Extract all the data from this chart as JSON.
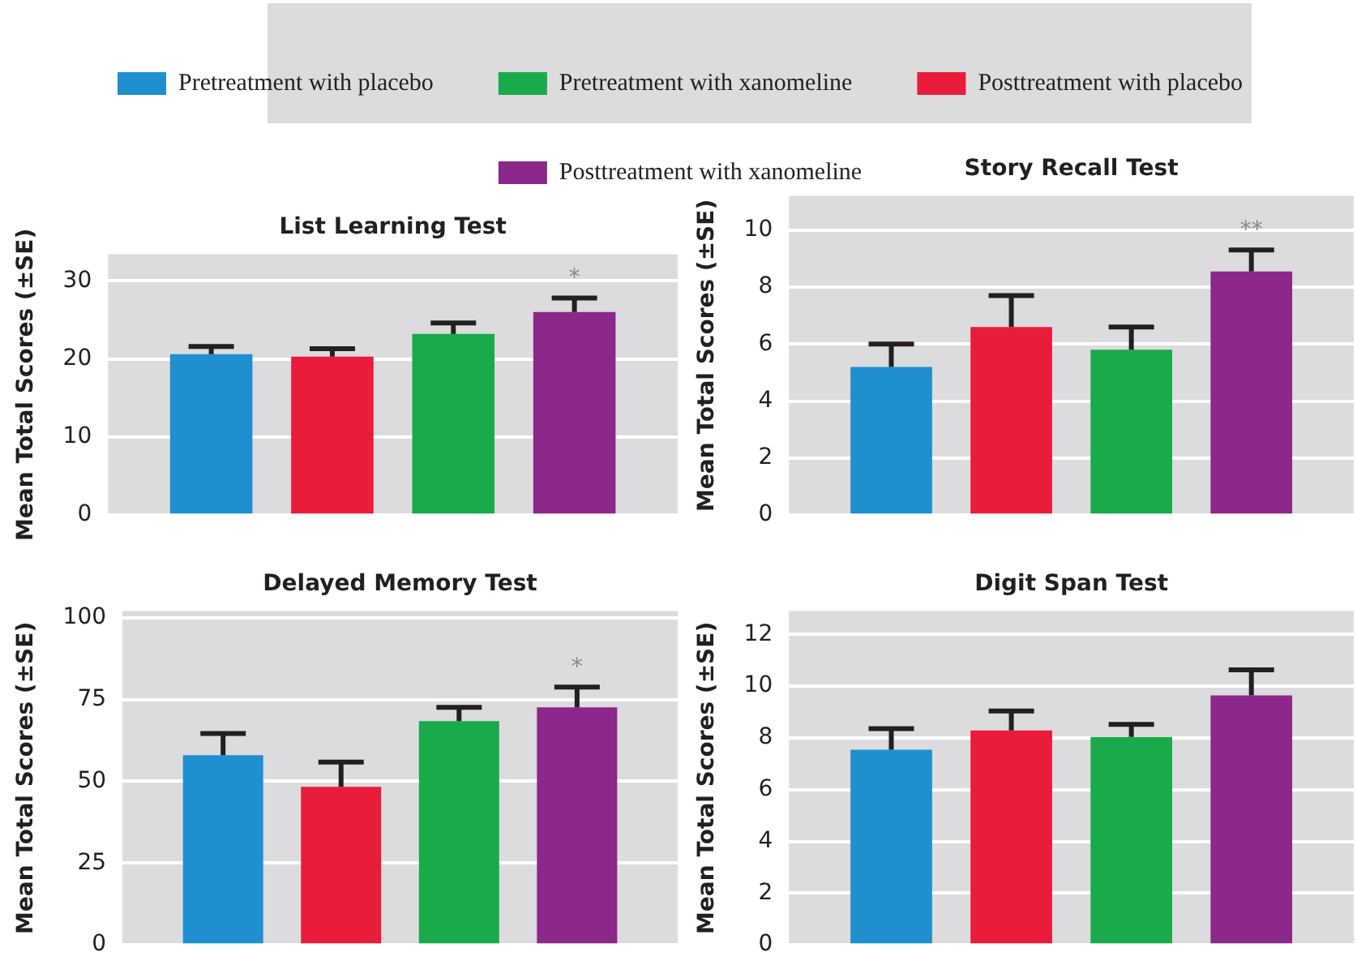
{
  "chart_data": [
    {
      "type": "bar",
      "title": "List Learning Test",
      "ylabel": "Mean Total Scores (±SE)",
      "categories": [
        null
      ],
      "legend": "top",
      "grid": "y",
      "ylim": [
        0,
        33.4
      ],
      "yticks": [
        0,
        10,
        20,
        30
      ],
      "annotations": [
        "*"
      ],
      "series": [
        {
          "name": "Pretreatment with placebo",
          "color": "#1f8fcf",
          "values": [
            20.6
          ],
          "errors": [
            [
              20.6,
              21.6
            ]
          ]
        },
        {
          "name": "Posttreatment with placebo",
          "color": "#e91c3a",
          "values": [
            20.3
          ],
          "errors": [
            [
              20.3,
              21.3
            ]
          ]
        },
        {
          "name": "Pretreatment with xanomeline",
          "color": "#1aaa4a",
          "values": [
            23.2
          ],
          "errors": [
            [
              23.2,
              24.6
            ]
          ]
        },
        {
          "name": "Posttreatment with xanomeline",
          "color": "#8b2889",
          "values": [
            26.0
          ],
          "errors": [
            [
              26.0,
              27.8
            ]
          ]
        }
      ]
    },
    {
      "type": "bar",
      "title": "Story Recall Test",
      "ylabel": "Mean Total Scores (±SE)",
      "categories": [
        null
      ],
      "grid": "y",
      "ylim": [
        0,
        11.2
      ],
      "yticks": [
        0,
        2,
        4,
        6,
        8,
        10
      ],
      "annotations": [
        "**"
      ],
      "series": [
        {
          "color": "#1f8fcf",
          "values": [
            5.2
          ],
          "errors": [
            [
              5.2,
              6.0
            ]
          ]
        },
        {
          "color": "#e91c3a",
          "values": [
            6.6
          ],
          "errors": [
            [
              6.6,
              7.7
            ]
          ]
        },
        {
          "color": "#1aaa4a",
          "values": [
            5.8
          ],
          "errors": [
            [
              5.8,
              6.6
            ]
          ]
        },
        {
          "color": "#8b2889",
          "values": [
            8.55
          ],
          "errors": [
            [
              8.55,
              9.3
            ]
          ]
        }
      ]
    },
    {
      "type": "bar",
      "title": "Delayed Memory Test",
      "ylabel": "Mean Total Scores (±SE)",
      "categories": [
        null
      ],
      "grid": "y",
      "ylim": [
        0,
        102
      ],
      "yticks": [
        0,
        25,
        50,
        75,
        100
      ],
      "annotations": [
        "*"
      ],
      "series": [
        {
          "color": "#1f8fcf",
          "values": [
            58
          ],
          "errors": [
            [
              58,
              64.6
            ]
          ]
        },
        {
          "color": "#e91c3a",
          "values": [
            48.3
          ],
          "errors": [
            [
              48.3,
              55.9
            ]
          ]
        },
        {
          "color": "#1aaa4a",
          "values": [
            68.4
          ],
          "errors": [
            [
              68.4,
              72.6
            ]
          ]
        },
        {
          "color": "#8b2889",
          "values": [
            72.6
          ],
          "errors": [
            [
              72.6,
              78.8
            ]
          ]
        }
      ]
    },
    {
      "type": "bar",
      "title": "Digit Span Test",
      "ylabel": "Mean Total Scores (±SE)",
      "categories": [
        null
      ],
      "grid": "y",
      "ylim": [
        0,
        12.9
      ],
      "yticks": [
        0,
        2,
        4,
        6,
        8,
        10,
        12
      ],
      "series": [
        {
          "color": "#1f8fcf",
          "values": [
            7.54
          ],
          "errors": [
            [
              7.54,
              8.36
            ]
          ]
        },
        {
          "color": "#e91c3a",
          "values": [
            8.29
          ],
          "errors": [
            [
              8.29,
              9.04
            ]
          ]
        },
        {
          "color": "#1aaa4a",
          "values": [
            8.04
          ],
          "errors": [
            [
              8.04,
              8.52
            ]
          ]
        },
        {
          "color": "#8b2889",
          "values": [
            9.64
          ],
          "errors": [
            [
              9.64,
              10.63
            ]
          ]
        }
      ]
    }
  ]
}
